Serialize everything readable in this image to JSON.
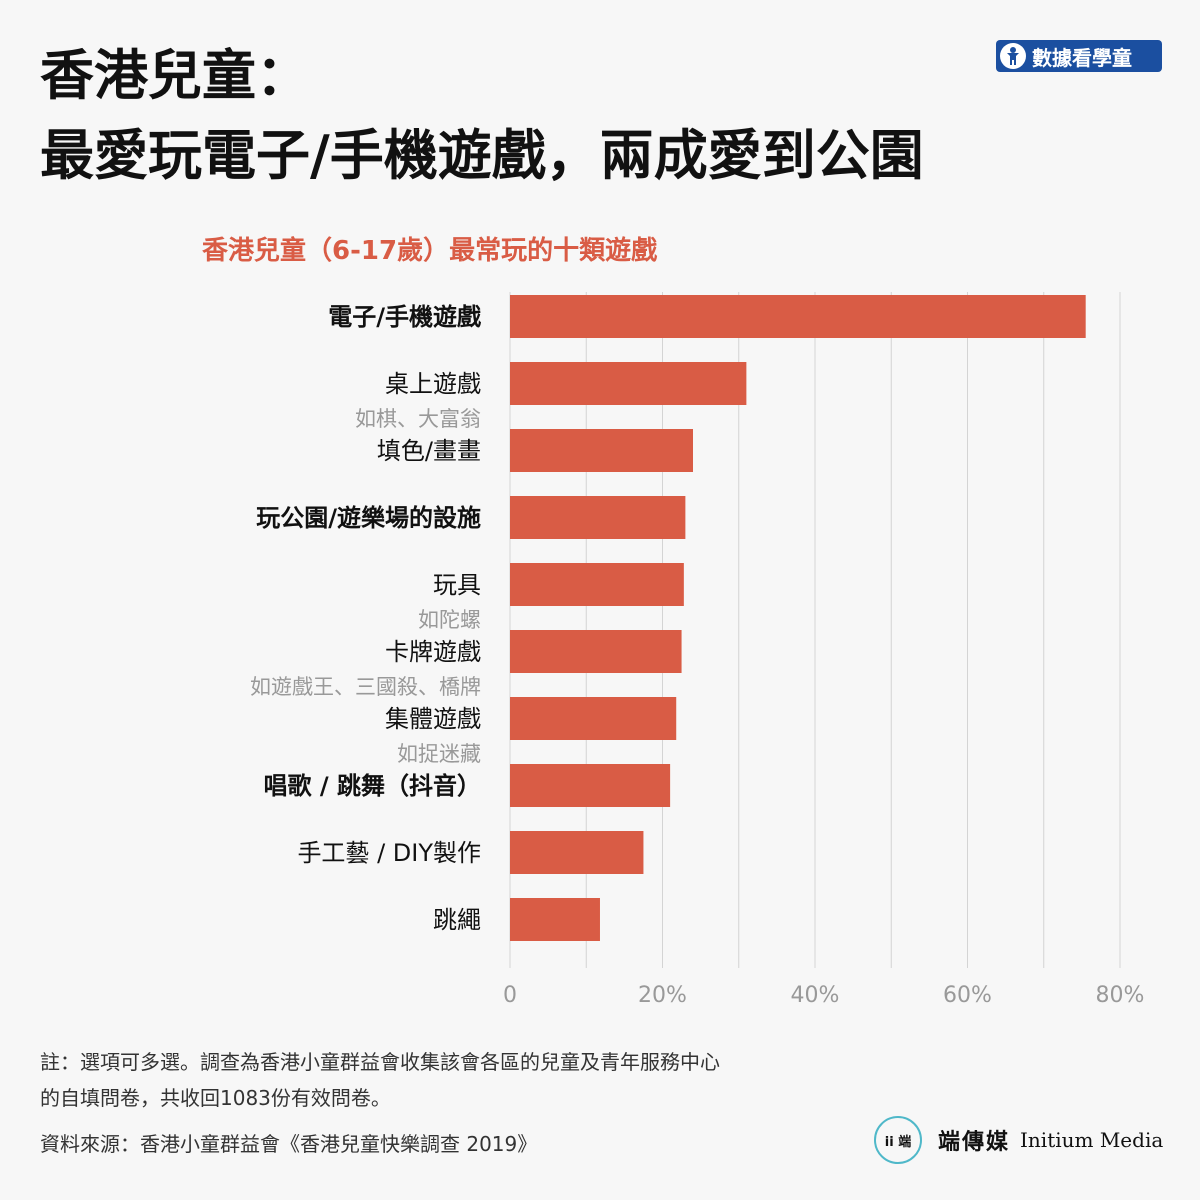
{
  "header": {
    "title_line1": "香港兒童：",
    "title_line2": "最愛玩電子/手機遊戲，兩成愛到公園",
    "badge_label": "數據看學童",
    "badge_icon": "child-figure-icon"
  },
  "chart_data": {
    "type": "bar",
    "orientation": "horizontal",
    "title": "香港兒童（6-17歲）最常玩的十類遊戲",
    "categories": [
      {
        "label": "電子/手機遊戲",
        "sub": "",
        "bold": true
      },
      {
        "label": "桌上遊戲",
        "sub": "如棋、大富翁",
        "bold": false
      },
      {
        "label": "填色/畫畫",
        "sub": "",
        "bold": false
      },
      {
        "label": "玩公園/遊樂場的設施",
        "sub": "",
        "bold": true
      },
      {
        "label": "玩具",
        "sub": "如陀螺",
        "bold": false
      },
      {
        "label": "卡牌遊戲",
        "sub": "如遊戲王、三國殺、橋牌",
        "bold": false
      },
      {
        "label": "集體遊戲",
        "sub": "如捉迷藏",
        "bold": false
      },
      {
        "label": "唱歌 / 跳舞（抖音）",
        "sub": "",
        "bold": true
      },
      {
        "label": "手工藝 / DIY製作",
        "sub": "",
        "bold": false
      },
      {
        "label": "跳繩",
        "sub": "",
        "bold": false
      }
    ],
    "values": [
      75.5,
      31,
      24,
      23,
      22.8,
      22.5,
      21.8,
      21,
      17.5,
      11.8
    ],
    "xlim": [
      0,
      80
    ],
    "ticks": [
      0,
      20,
      40,
      60,
      80
    ],
    "tick_labels": [
      "0",
      "20%",
      "40%",
      "60%",
      "80%"
    ],
    "grid": true,
    "bar_color": "#d95c45"
  },
  "footer": {
    "note_line1": "註：選項可多選。調查為香港小童群益會收集該會各區的兒童及青年服務中心",
    "note_line2": "的自填問卷，共收回1083份有效問卷。",
    "source": "資料來源：香港小童群益會《香港兒童快樂調查 2019》",
    "logo_mark": "ii 端",
    "logo_cn": "端傳媒",
    "logo_en": "Initium Media"
  }
}
